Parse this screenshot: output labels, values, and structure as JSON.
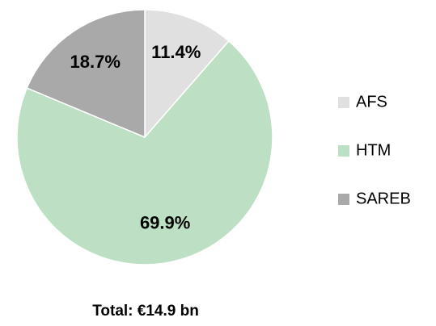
{
  "chart_data": {
    "type": "pie",
    "categories": [
      "AFS",
      "HTM",
      "SAREB"
    ],
    "values": [
      11.4,
      69.9,
      18.7
    ],
    "value_labels": [
      "11.4%",
      "69.9%",
      "18.7%"
    ],
    "colors": [
      "#e0e0e0",
      "#bde0c4",
      "#a9a9a9"
    ],
    "legend": "right",
    "annotation": "Total: €14.9 bn"
  }
}
